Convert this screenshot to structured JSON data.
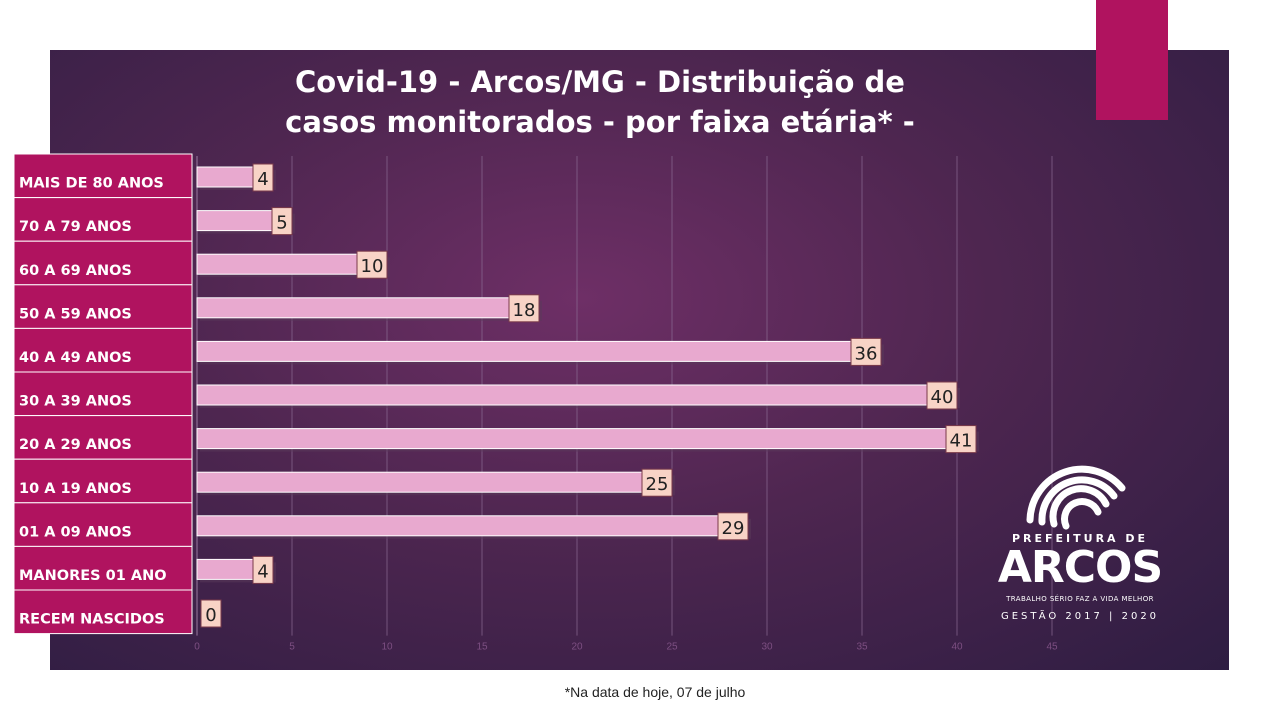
{
  "chart_data": {
    "type": "bar",
    "orientation": "horizontal",
    "title": "Covid-19 - Arcos/MG - Distribuição de casos monitorados - por faixa etária* -",
    "title_lines": [
      "Covid-19 - Arcos/MG - Distribuição de",
      "casos monitorados - por faixa etária* -"
    ],
    "categories": [
      "MAIS DE 80 ANOS",
      "70 A 79 ANOS",
      "60 A 69 ANOS",
      "50 A 59 ANOS",
      "40 A 49 ANOS",
      "30 A 39 ANOS",
      "20 A 29 ANOS",
      "10 A 19 ANOS",
      "01 A 09 ANOS",
      "MANORES 01 ANO",
      "RECEM NASCIDOS"
    ],
    "values": [
      4,
      5,
      10,
      18,
      36,
      40,
      41,
      25,
      29,
      4,
      0
    ],
    "xlim": [
      0,
      45
    ],
    "xticks": [
      0,
      5,
      10,
      15,
      20,
      25,
      30,
      35,
      40,
      45
    ],
    "grid": true,
    "xlabel": "",
    "ylabel": ""
  },
  "colors": {
    "bar": "#e8a9cf",
    "category_box": "#b0135f",
    "data_label_bg": "#f8d3c6",
    "accent": "#b0135f"
  },
  "logo": {
    "line1": "PREFEITURA DE",
    "brand": "ARCOS",
    "slogan": "TRABALHO SÉRIO FAZ A VIDA MELHOR",
    "gestao": "GESTÃO 2017 | 2020"
  },
  "footnote": "*Na data de hoje, 07 de julho"
}
